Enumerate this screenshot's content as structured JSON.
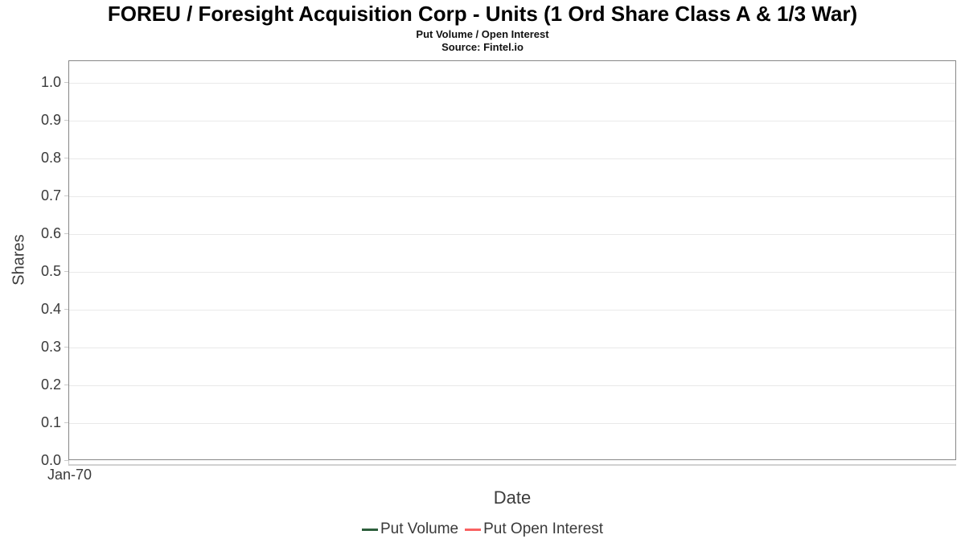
{
  "chart_data": {
    "type": "line",
    "title": "FOREU / Foresight Acquisition Corp - Units (1 Ord Share Class A & 1/3 War)",
    "subtitle": "Put Volume / Open Interest",
    "source": "Source: Fintel.io",
    "xlabel": "Date",
    "ylabel": "Shares",
    "x_tick_labels": [
      "Jan-70"
    ],
    "y_tick_labels": [
      "1.0",
      "0.9",
      "0.8",
      "0.7",
      "0.6",
      "0.5",
      "0.4",
      "0.3",
      "0.2",
      "0.1",
      "0.0"
    ],
    "ylim": [
      0.0,
      1.05
    ],
    "grid": "horizontal-only",
    "legend_position": "bottom-center",
    "series": [
      {
        "name": "Put Volume",
        "color": "#2d5f3c",
        "x": [],
        "values": []
      },
      {
        "name": "Put Open Interest",
        "color": "#f96262",
        "x": [],
        "values": []
      }
    ]
  },
  "colors": {
    "plot_border": "#878787",
    "gridline": "#e9e9e9",
    "tick_mark": "#c9c9c9",
    "axis_text": "#3a3a3a",
    "title_text": "#000000"
  }
}
